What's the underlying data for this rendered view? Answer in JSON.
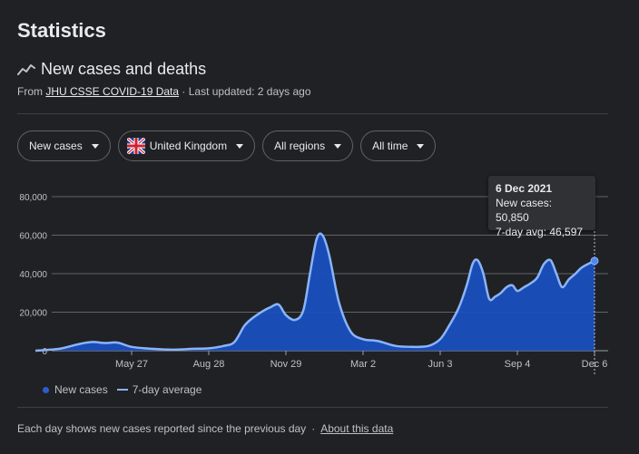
{
  "page": {
    "title": "Statistics"
  },
  "section": {
    "icon": "trend-line-icon",
    "title": "New cases and deaths",
    "source_prefix": "From",
    "source_link": "JHU CSSE COVID-19 Data",
    "updated": "· Last updated: 2 days ago"
  },
  "filters": {
    "metric": "New cases",
    "region_country": "United Kingdom",
    "regions": "All regions",
    "time": "All time",
    "flag_icon": "uk-flag-icon"
  },
  "tooltip": {
    "date": "6 Dec 2021",
    "cases": "New cases: 50,850",
    "avg": "7-day avg: 46,597"
  },
  "legend": {
    "cases": "New cases",
    "avg": "7-day average"
  },
  "footer": {
    "note": "Each day shows new cases reported since the previous day",
    "sep": "·",
    "link": "About this data"
  },
  "colors": {
    "bg": "#202124",
    "area": "#1a50c0",
    "avg_line": "#8ab4f8",
    "grid": "#5f6368"
  },
  "chart_data": {
    "type": "area",
    "ylim": [
      0,
      80000
    ],
    "y_ticks": [
      "0",
      "20,000",
      "40,000",
      "60,000",
      "80,000"
    ],
    "y_tick_values": [
      0,
      20000,
      40000,
      60000,
      80000
    ],
    "x_ticks": [
      "May 27",
      "Aug 28",
      "Nov 29",
      "Mar 2",
      "Jun 3",
      "Sep 4",
      "Dec 6"
    ],
    "x_tick_dates": [
      "2020-05-27",
      "2020-08-28",
      "2020-11-29",
      "2021-03-02",
      "2021-06-03",
      "2021-09-04",
      "2021-12-06"
    ],
    "series": [
      {
        "name": "7-day average",
        "x": [
          "2020-02-01",
          "2020-03-01",
          "2020-03-25",
          "2020-04-10",
          "2020-04-25",
          "2020-05-10",
          "2020-05-27",
          "2020-06-20",
          "2020-07-15",
          "2020-08-10",
          "2020-08-28",
          "2020-09-15",
          "2020-09-28",
          "2020-10-10",
          "2020-10-20",
          "2020-11-01",
          "2020-11-10",
          "2020-11-20",
          "2020-11-29",
          "2020-12-10",
          "2020-12-20",
          "2020-12-28",
          "2021-01-05",
          "2021-01-12",
          "2021-01-20",
          "2021-02-01",
          "2021-02-15",
          "2021-03-02",
          "2021-03-20",
          "2021-04-10",
          "2021-05-01",
          "2021-05-20",
          "2021-06-03",
          "2021-06-15",
          "2021-06-25",
          "2021-07-05",
          "2021-07-12",
          "2021-07-18",
          "2021-07-25",
          "2021-08-01",
          "2021-08-08",
          "2021-08-15",
          "2021-08-22",
          "2021-08-29",
          "2021-09-04",
          "2021-09-12",
          "2021-09-20",
          "2021-09-28",
          "2021-10-06",
          "2021-10-14",
          "2021-10-21",
          "2021-10-28",
          "2021-11-05",
          "2021-11-13",
          "2021-11-20",
          "2021-11-28",
          "2021-12-06"
        ],
        "y": [
          0,
          1000,
          3500,
          4500,
          4000,
          4200,
          2000,
          1000,
          500,
          1000,
          1200,
          2500,
          4500,
          13000,
          17000,
          20500,
          22500,
          24000,
          18500,
          16000,
          21000,
          40000,
          58000,
          60000,
          50000,
          25000,
          10000,
          6000,
          5000,
          2500,
          2000,
          2500,
          6000,
          14000,
          22000,
          34000,
          45000,
          47000,
          40000,
          27000,
          28000,
          30000,
          33000,
          34000,
          31000,
          33000,
          35000,
          38000,
          45000,
          47000,
          40000,
          33000,
          37000,
          40000,
          43000,
          45000,
          46597
        ]
      }
    ]
  }
}
